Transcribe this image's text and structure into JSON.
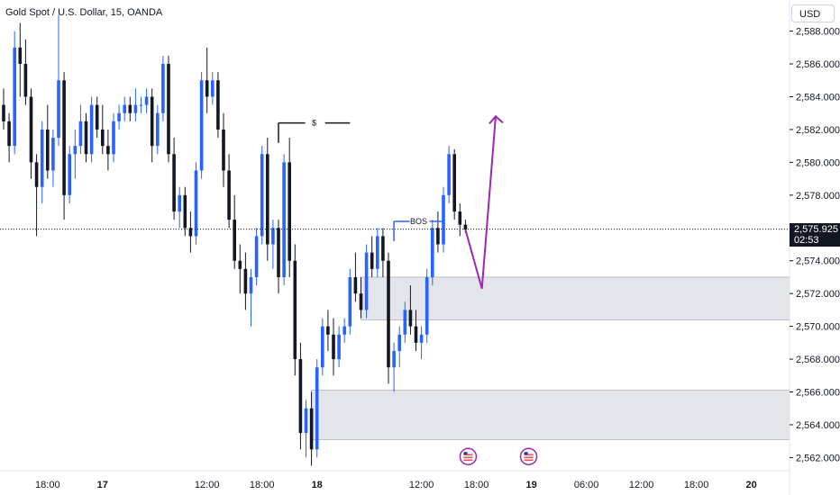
{
  "colors": {
    "up": "#2962ff",
    "down": "#131722",
    "zone_fill": "#d1d4dc",
    "zone_stroke": "#9598a1",
    "projection": "#9c27b0",
    "last_price_line": "#131722"
  },
  "header": {
    "currency": "USD"
  },
  "last_price": {
    "value": "2,575.925",
    "countdown": "02:53"
  },
  "chart_data": {
    "type": "candlestick",
    "title": "Gold Spot / U.S. Dollar, 15, OANDA",
    "ylim": [
      2561.2,
      2588.8
    ],
    "y_ticks": [
      "2,562.000",
      "2,564.000",
      "2,566.000",
      "2,568.000",
      "2,570.000",
      "2,572.000",
      "2,574.000",
      "2,576.000",
      "2,578.000",
      "2,580.000",
      "2,582.000",
      "2,584.000",
      "2,586.000",
      "2,588.000"
    ],
    "y_tick_values": [
      2562,
      2564,
      2566,
      2568,
      2570,
      2572,
      2574,
      2576,
      2578,
      2580,
      2582,
      2584,
      2586,
      2588
    ],
    "x_ticks": [
      {
        "label": "18:00",
        "day": false,
        "bar": 8
      },
      {
        "label": "17",
        "day": true,
        "bar": 18
      },
      {
        "label": "12:00",
        "day": false,
        "bar": 37
      },
      {
        "label": "18:00",
        "day": false,
        "bar": 47
      },
      {
        "label": "18",
        "day": true,
        "bar": 57
      },
      {
        "label": "12:00",
        "day": false,
        "bar": 76
      },
      {
        "label": "18:00",
        "day": false,
        "bar": 86
      },
      {
        "label": "19",
        "day": true,
        "bar": 96
      },
      {
        "label": "06:00",
        "day": false,
        "bar": 106
      },
      {
        "label": "12:00",
        "day": false,
        "bar": 116
      },
      {
        "label": "18:00",
        "day": false,
        "bar": 126
      },
      {
        "label": "20",
        "day": true,
        "bar": 136
      }
    ],
    "candle_bars": 85,
    "candles": [
      [
        2583.5,
        2584.5,
        2582.0,
        2582.5
      ],
      [
        2582.5,
        2583.0,
        2580.0,
        2581.0
      ],
      [
        2581.0,
        2588.0,
        2580.5,
        2587.0
      ],
      [
        2587.0,
        2588.5,
        2584.0,
        2586.0
      ],
      [
        2586.0,
        2587.5,
        2583.5,
        2584.0
      ],
      [
        2584.0,
        2584.5,
        2579.0,
        2580.0
      ],
      [
        2580.0,
        2580.5,
        2575.5,
        2578.5
      ],
      [
        2578.5,
        2582.5,
        2577.5,
        2582.0
      ],
      [
        2582.0,
        2583.5,
        2579.0,
        2579.5
      ],
      [
        2579.5,
        2582.0,
        2578.5,
        2581.5
      ],
      [
        2581.5,
        2589.0,
        2581.0,
        2585.0
      ],
      [
        2585.0,
        2585.5,
        2576.5,
        2578.0
      ],
      [
        2578.0,
        2581.0,
        2577.5,
        2580.5
      ],
      [
        2580.5,
        2582.0,
        2579.0,
        2581.0
      ],
      [
        2581.0,
        2583.5,
        2580.5,
        2582.5
      ],
      [
        2582.5,
        2583.0,
        2580.0,
        2580.5
      ],
      [
        2580.5,
        2584.0,
        2580.0,
        2583.5
      ],
      [
        2583.5,
        2584.0,
        2581.5,
        2582.0
      ],
      [
        2582.0,
        2583.5,
        2580.5,
        2581.0
      ],
      [
        2581.0,
        2582.0,
        2579.5,
        2580.5
      ],
      [
        2580.5,
        2583.0,
        2580.0,
        2582.5
      ],
      [
        2582.5,
        2583.5,
        2582.0,
        2583.0
      ],
      [
        2583.0,
        2584.0,
        2582.5,
        2583.5
      ],
      [
        2583.5,
        2584.0,
        2582.5,
        2583.0
      ],
      [
        2583.0,
        2584.5,
        2582.5,
        2583.5
      ],
      [
        2583.5,
        2584.0,
        2583.0,
        2583.5
      ],
      [
        2583.5,
        2584.5,
        2583.0,
        2584.0
      ],
      [
        2584.0,
        2584.5,
        2580.0,
        2581.0
      ],
      [
        2581.0,
        2583.5,
        2580.5,
        2583.0
      ],
      [
        2583.0,
        2586.5,
        2582.5,
        2586.0
      ],
      [
        2586.0,
        2586.5,
        2580.0,
        2580.5
      ],
      [
        2580.5,
        2581.5,
        2576.5,
        2577.0
      ],
      [
        2577.0,
        2578.5,
        2576.0,
        2578.0
      ],
      [
        2578.0,
        2578.5,
        2575.5,
        2576.0
      ],
      [
        2576.0,
        2577.0,
        2574.5,
        2575.5
      ],
      [
        2575.5,
        2580.0,
        2575.0,
        2579.5
      ],
      [
        2579.5,
        2585.5,
        2579.0,
        2585.0
      ],
      [
        2585.0,
        2587.0,
        2583.0,
        2584.0
      ],
      [
        2584.0,
        2585.5,
        2583.5,
        2585.0
      ],
      [
        2585.0,
        2585.5,
        2581.5,
        2582.0
      ],
      [
        2582.0,
        2583.0,
        2578.5,
        2579.5
      ],
      [
        2579.5,
        2580.5,
        2576.0,
        2576.5
      ],
      [
        2576.5,
        2578.0,
        2573.5,
        2574.0
      ],
      [
        2574.0,
        2575.0,
        2572.0,
        2573.5
      ],
      [
        2573.5,
        2574.5,
        2571.0,
        2572.0
      ],
      [
        2572.0,
        2573.5,
        2570.0,
        2573.0
      ],
      [
        2573.0,
        2576.0,
        2572.5,
        2575.5
      ],
      [
        2575.5,
        2581.0,
        2575.0,
        2580.5
      ],
      [
        2580.5,
        2581.5,
        2574.0,
        2575.0
      ],
      [
        2575.0,
        2576.5,
        2573.5,
        2576.0
      ],
      [
        2576.0,
        2576.5,
        2572.0,
        2573.0
      ],
      [
        2573.0,
        2580.5,
        2572.5,
        2580.0
      ],
      [
        2580.0,
        2581.5,
        2573.0,
        2574.0
      ],
      [
        2574.0,
        2575.0,
        2567.0,
        2568.0
      ],
      [
        2568.0,
        2569.0,
        2562.5,
        2563.5
      ],
      [
        2563.5,
        2565.5,
        2562.0,
        2565.0
      ],
      [
        2565.0,
        2566.0,
        2561.5,
        2562.5
      ],
      [
        2562.5,
        2568.0,
        2562.0,
        2567.5
      ],
      [
        2567.5,
        2570.5,
        2567.0,
        2570.0
      ],
      [
        2570.0,
        2571.0,
        2568.5,
        2569.5
      ],
      [
        2569.5,
        2570.5,
        2567.0,
        2568.0
      ],
      [
        2568.0,
        2570.0,
        2567.5,
        2569.5
      ],
      [
        2569.5,
        2570.5,
        2569.0,
        2570.0
      ],
      [
        2570.0,
        2573.5,
        2569.5,
        2573.0
      ],
      [
        2573.0,
        2574.5,
        2571.5,
        2572.0
      ],
      [
        2572.0,
        2573.0,
        2570.5,
        2571.0
      ],
      [
        2571.0,
        2575.0,
        2570.5,
        2574.5
      ],
      [
        2574.5,
        2575.5,
        2573.0,
        2573.5
      ],
      [
        2573.5,
        2576.0,
        2573.0,
        2575.5
      ],
      [
        2575.5,
        2576.0,
        2573.0,
        2574.0
      ],
      [
        2574.0,
        2574.5,
        2566.5,
        2567.5
      ],
      [
        2567.5,
        2569.0,
        2566.0,
        2568.5
      ],
      [
        2568.5,
        2570.0,
        2567.5,
        2569.5
      ],
      [
        2569.5,
        2571.5,
        2569.0,
        2571.0
      ],
      [
        2571.0,
        2572.5,
        2569.5,
        2570.0
      ],
      [
        2570.0,
        2571.0,
        2568.5,
        2569.0
      ],
      [
        2569.0,
        2570.0,
        2568.0,
        2569.5
      ],
      [
        2569.5,
        2573.5,
        2569.0,
        2573.0
      ],
      [
        2573.0,
        2576.5,
        2572.5,
        2576.0
      ],
      [
        2576.0,
        2577.0,
        2574.5,
        2575.0
      ],
      [
        2575.0,
        2578.5,
        2574.5,
        2578.0
      ],
      [
        2578.0,
        2581.0,
        2577.5,
        2580.5
      ],
      [
        2580.5,
        2580.8,
        2576.5,
        2577.0
      ],
      [
        2577.0,
        2577.5,
        2575.5,
        2576.2
      ],
      [
        2576.2,
        2576.5,
        2575.7,
        2575.9
      ]
    ],
    "zones": [
      {
        "x_start_bar": 65,
        "y_top": 2573.0,
        "y_bottom": 2570.4
      },
      {
        "x_start_bar": 56,
        "y_top": 2566.1,
        "y_bottom": 2563.1
      }
    ],
    "annotations": [
      {
        "label": "$",
        "bar_start": 50,
        "bar_end": 63,
        "y": 2582.4,
        "bar_tick": 50
      },
      {
        "label": "BOS",
        "bar_start": 71,
        "bar_end": 80,
        "y": 2576.4,
        "bar_tick": 71
      }
    ],
    "projection": [
      {
        "bar": 84,
        "y": 2575.9
      },
      {
        "bar": 87,
        "y": 2572.3
      },
      {
        "bar": 89.5,
        "y": 2582.8
      }
    ],
    "events": [
      {
        "bar": 84.5,
        "y": 2561.9
      },
      {
        "bar": 95.5,
        "y": 2561.9
      }
    ],
    "last_price_value": 2575.925
  }
}
